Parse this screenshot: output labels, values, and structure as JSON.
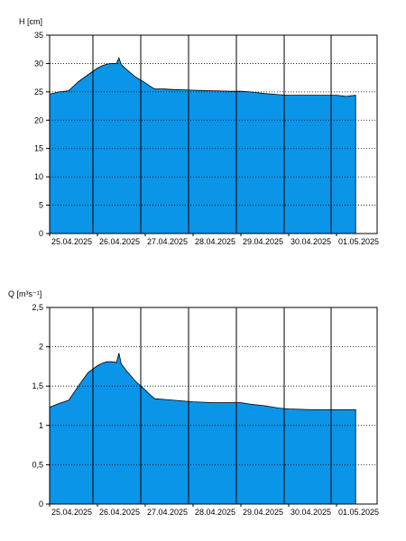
{
  "chart_data": [
    {
      "type": "area",
      "ylabel": "H [cm]",
      "ylim": [
        0,
        35
      ],
      "yticks": [
        0,
        5,
        10,
        15,
        20,
        25,
        30,
        35
      ],
      "ytick_labels": [
        "0",
        "5",
        "10",
        "15",
        "20",
        "25",
        "30",
        "35"
      ],
      "grid": true,
      "fill_color": "#0a95e8",
      "x_tick_labels": [
        "25.04.2025",
        "26.04.2025",
        "27.04.2025",
        "28.04.2025",
        "29.04.2025",
        "30.04.2025",
        "01.05.2025"
      ],
      "series": [
        {
          "x": [
            0.0,
            0.2,
            0.4,
            0.6,
            0.8,
            1.0,
            1.1,
            1.2,
            1.3,
            1.4,
            1.45,
            1.5,
            1.6,
            1.8,
            2.0,
            2.1,
            2.2,
            2.4,
            2.6,
            3.0,
            3.4,
            3.8,
            4.0,
            4.2,
            4.5,
            4.8,
            5.0,
            5.5,
            6.0,
            6.2,
            6.4
          ],
          "y": [
            24.6,
            25.0,
            25.2,
            26.8,
            28.0,
            29.2,
            29.6,
            29.9,
            30.0,
            30.0,
            31.0,
            29.8,
            29.0,
            27.6,
            26.6,
            26.0,
            25.5,
            25.5,
            25.4,
            25.3,
            25.2,
            25.1,
            25.1,
            25.0,
            24.7,
            24.5,
            24.4,
            24.4,
            24.4,
            24.2,
            24.4
          ]
        }
      ]
    },
    {
      "type": "area",
      "ylabel": "Q [m³s⁻¹]",
      "ylim": [
        0,
        2.5
      ],
      "yticks": [
        0,
        0.5,
        1,
        1.5,
        2,
        2.5
      ],
      "ytick_labels": [
        "0",
        "0,5",
        "1",
        "1,5",
        "2",
        "2,5"
      ],
      "grid": true,
      "fill_color": "#0a95e8",
      "x_tick_labels": [
        "25.04.2025",
        "26.04.2025",
        "27.04.2025",
        "28.04.2025",
        "29.04.2025",
        "30.04.2025",
        "01.05.2025"
      ],
      "series": [
        {
          "x": [
            0.0,
            0.2,
            0.4,
            0.6,
            0.8,
            1.0,
            1.1,
            1.2,
            1.3,
            1.4,
            1.45,
            1.5,
            1.6,
            1.8,
            2.0,
            2.1,
            2.2,
            2.4,
            2.6,
            3.0,
            3.4,
            3.8,
            4.0,
            4.2,
            4.5,
            4.8,
            5.0,
            5.5,
            6.0,
            6.2,
            6.4
          ],
          "y": [
            1.23,
            1.28,
            1.32,
            1.5,
            1.67,
            1.76,
            1.79,
            1.81,
            1.81,
            1.8,
            1.92,
            1.78,
            1.7,
            1.56,
            1.45,
            1.39,
            1.34,
            1.33,
            1.32,
            1.3,
            1.29,
            1.29,
            1.29,
            1.27,
            1.25,
            1.22,
            1.21,
            1.2,
            1.2,
            1.2,
            1.2
          ]
        }
      ]
    }
  ]
}
